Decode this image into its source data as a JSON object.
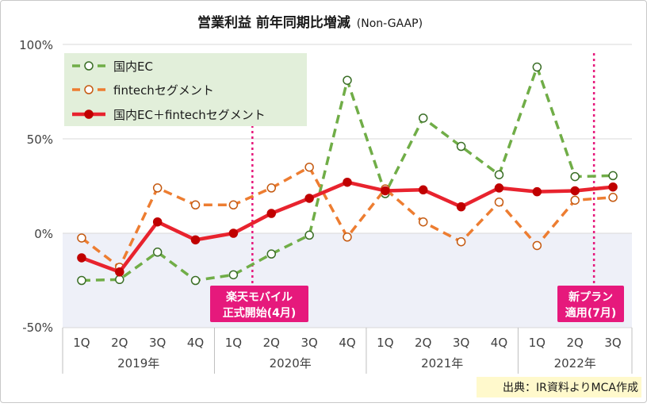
{
  "chart_data": {
    "type": "line",
    "title": "営業利益 前年同期比増減",
    "subtitle": "(Non-GAAP)",
    "x": [
      "1Q",
      "2Q",
      "3Q",
      "4Q",
      "1Q",
      "2Q",
      "3Q",
      "4Q",
      "1Q",
      "2Q",
      "3Q",
      "4Q",
      "1Q",
      "2Q",
      "3Q"
    ],
    "year_groups": [
      {
        "label": "2019年",
        "span": 4
      },
      {
        "label": "2020年",
        "span": 4
      },
      {
        "label": "2021年",
        "span": 4
      },
      {
        "label": "2022年",
        "span": 3
      }
    ],
    "y_ticks": [
      "100%",
      "50%",
      "0%",
      "-50%"
    ],
    "y_tick_values": [
      100,
      50,
      0,
      -50
    ],
    "ylim": [
      -50,
      100
    ],
    "series": [
      {
        "name": "国内EC",
        "color": "#70ad47",
        "style": "dashed-hollow",
        "values": [
          -25,
          -24.5,
          -10,
          -25,
          -22,
          -11,
          -1,
          81,
          21,
          61,
          46,
          31,
          88,
          30,
          30.5
        ]
      },
      {
        "name": "fintechセグメント",
        "color": "#ed7d31",
        "style": "dashed-hollow",
        "values": [
          -2.5,
          -18,
          24,
          15,
          15,
          24,
          35,
          -2,
          23.5,
          6,
          -4.5,
          16.5,
          -6.5,
          17.5,
          19
        ]
      },
      {
        "name": "国内EC＋fintechセグメント",
        "color": "#e8232e",
        "style": "solid-filled",
        "values": [
          -13,
          -20.5,
          6,
          -3.5,
          0,
          10.5,
          18.5,
          27,
          22.5,
          23,
          14,
          24,
          22,
          22.5,
          24.5
        ]
      }
    ],
    "annotations": [
      {
        "label_line1": "楽天モバイル",
        "label_line2": "正式開始(4月)",
        "color": "#e6197c",
        "between_index": 4.5
      },
      {
        "label_line1": "新プラン",
        "label_line2": "適用(7月)",
        "color": "#e6197c",
        "between_index": 13.5
      }
    ],
    "source_note": "出典：IR資料よりMCA作成",
    "negative_shading_color": "#eef0f8",
    "legend_bg_color": "#e2efda"
  }
}
